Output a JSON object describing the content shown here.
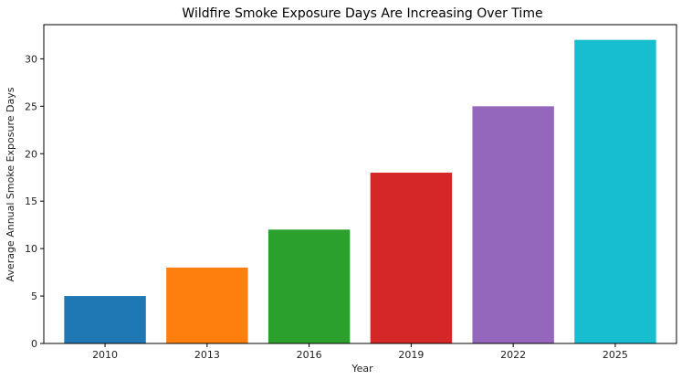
{
  "chart_data": {
    "type": "bar",
    "title": "Wildfire Smoke Exposure Days Are Increasing Over Time",
    "xlabel": "Year",
    "ylabel": "Average Annual Smoke Exposure Days",
    "categories": [
      "2010",
      "2013",
      "2016",
      "2019",
      "2022",
      "2025"
    ],
    "values": [
      5,
      8,
      12,
      18,
      25,
      32
    ],
    "colors": [
      "#1f77b4",
      "#ff7f0e",
      "#2ca02c",
      "#d62728",
      "#9467bd",
      "#17becf"
    ],
    "ylim": [
      0,
      33.6
    ],
    "yticks": [
      0,
      5,
      10,
      15,
      20,
      25,
      30
    ],
    "grid": false,
    "legend": "none"
  }
}
